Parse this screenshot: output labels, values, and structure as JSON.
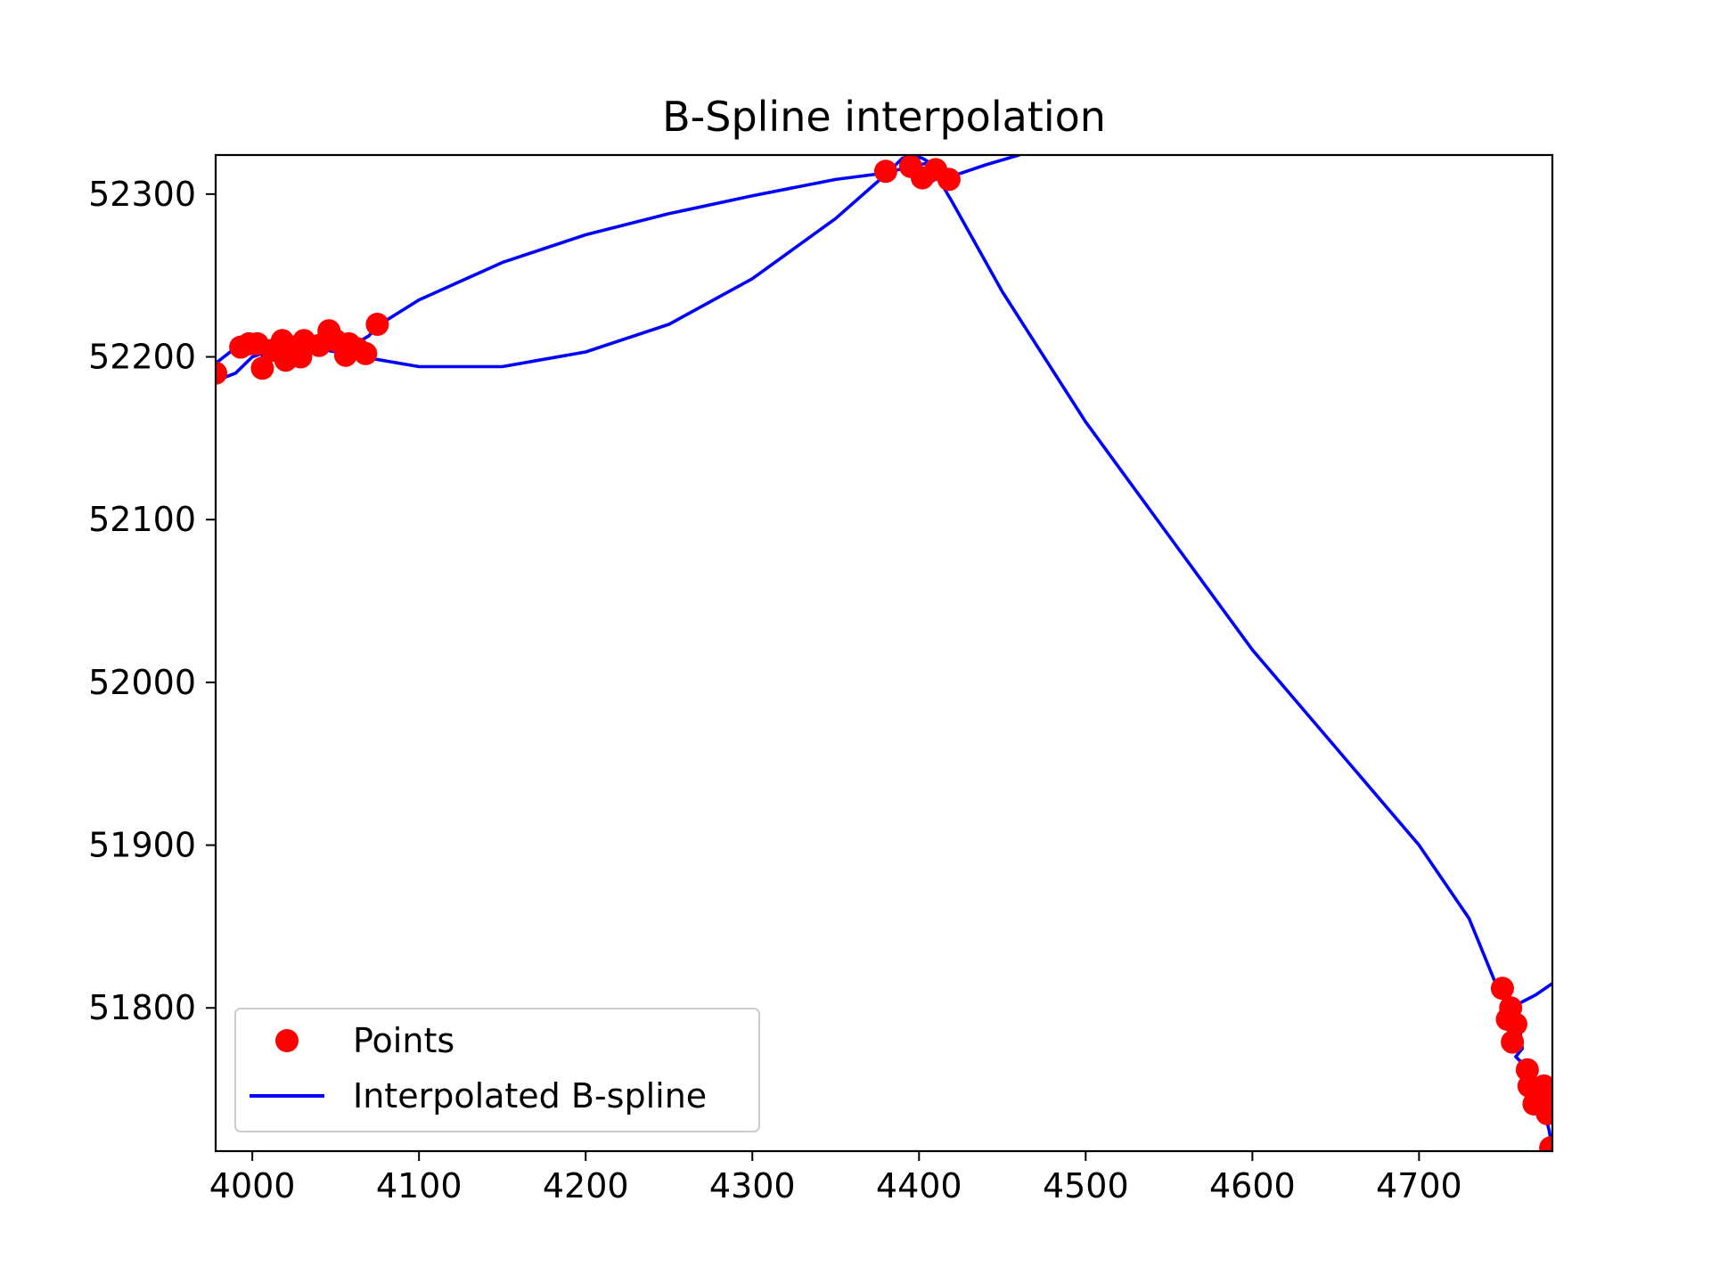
{
  "chart_data": {
    "type": "scatter",
    "title": "B-Spline interpolation",
    "xlabel": "",
    "ylabel": "",
    "xlim": [
      3978,
      4780
    ],
    "ylim": [
      51712,
      52324
    ],
    "xticks": [
      "4000",
      "4100",
      "4200",
      "4300",
      "4400",
      "4500",
      "4600",
      "4700"
    ],
    "yticks": [
      "51800",
      "51900",
      "52000",
      "52100",
      "52200",
      "52300"
    ],
    "grid": false,
    "legend": {
      "placement": "lower-left",
      "entries": [
        {
          "label": "Points",
          "marker": "circle",
          "color": "#ff0000"
        },
        {
          "label": "Interpolated B-spline",
          "marker": "line",
          "color": "#0000ff"
        }
      ]
    },
    "series": [
      {
        "name": "Points",
        "kind": "scatter",
        "color": "#ff0000",
        "x": [
          3978,
          3993,
          3998,
          4003,
          4006,
          4012,
          4018,
          4020,
          4024,
          4029,
          4031,
          4040,
          4046,
          4050,
          4056,
          4058,
          4063,
          4068,
          4075,
          4380,
          4395,
          4402,
          4410,
          4418,
          4750,
          4753,
          4755,
          4756,
          4758,
          4765,
          4766,
          4769,
          4772,
          4775,
          4777,
          4778,
          4779
        ],
        "y": [
          52190,
          52206,
          52208,
          52208,
          52193,
          52204,
          52210,
          52198,
          52206,
          52200,
          52210,
          52207,
          52216,
          52210,
          52201,
          52208,
          52205,
          52202,
          52220,
          52314,
          52317,
          52310,
          52315,
          52309,
          51812,
          51793,
          51800,
          51779,
          51790,
          51762,
          51752,
          51741,
          51748,
          51752,
          51735,
          51740,
          51714
        ]
      },
      {
        "name": "Interpolated B-spline",
        "kind": "line",
        "color": "#0000ff",
        "x": [
          3978,
          3988,
          3998,
          4008,
          4006,
          4014,
          4018,
          4022,
          4026,
          4030,
          4035,
          4040,
          4046,
          4052,
          4058,
          4062,
          4070,
          4075,
          4100,
          4150,
          4200,
          4250,
          4300,
          4350,
          4380,
          4395,
          4405,
          4410,
          4412,
          4407,
          4402,
          4396,
          4390,
          4380,
          4350,
          4300,
          4250,
          4200,
          4150,
          4100,
          4060,
          4040,
          4020,
          4000,
          3990,
          3980,
          3978
        ],
        "y": [
          52196,
          52204,
          52209,
          52208,
          52200,
          52201,
          52206,
          52202,
          52208,
          52204,
          52208,
          52211,
          52216,
          52208,
          52204,
          52208,
          52213,
          52219,
          52235,
          52258,
          52275,
          52288,
          52299,
          52309,
          52313,
          52317,
          52319,
          52321,
          52316,
          52319,
          52322,
          52324,
          52322,
          52312,
          52285,
          52248,
          52220,
          52203,
          52194,
          52194,
          52201,
          52205,
          52207,
          52200,
          52190,
          52186,
          52187
        ]
      },
      {
        "name": "Interpolated B-spline",
        "kind": "line",
        "color": "#0000ff",
        "x": [
          4403,
          4408,
          4414,
          4420,
          4440,
          4460,
          4470
        ],
        "y": [
          52310,
          52308,
          52312,
          52311,
          52318,
          52324,
          52330
        ]
      },
      {
        "name": "Interpolated B-spline",
        "kind": "line",
        "color": "#0000ff",
        "x": [
          4408,
          4420,
          4450,
          4500,
          4550,
          4600,
          4650,
          4700,
          4730,
          4748,
          4755,
          4760,
          4762,
          4758,
          4760,
          4766,
          4770,
          4774,
          4778,
          4780
        ],
        "y": [
          52316,
          52295,
          52240,
          52160,
          52090,
          52020,
          51960,
          51900,
          51855,
          51810,
          51798,
          51790,
          51775,
          51770,
          51768,
          51762,
          51752,
          51740,
          51725,
          51713
        ]
      },
      {
        "name": "Interpolated B-spline",
        "kind": "line",
        "color": "#0000ff",
        "x": [
          4755,
          4770,
          4780
        ],
        "y": [
          51800,
          51808,
          51815
        ]
      }
    ]
  }
}
